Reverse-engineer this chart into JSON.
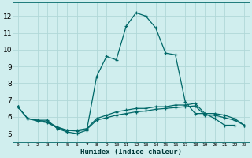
{
  "xlabel": "Humidex (Indice chaleur)",
  "background_color": "#d0eeee",
  "grid_color": "#b0d8d8",
  "line_color": "#006868",
  "xlim": [
    -0.5,
    23.5
  ],
  "ylim": [
    4.5,
    12.8
  ],
  "yticks": [
    5,
    6,
    7,
    8,
    9,
    10,
    11,
    12
  ],
  "xticks": [
    0,
    1,
    2,
    3,
    4,
    5,
    6,
    7,
    8,
    9,
    10,
    11,
    12,
    13,
    14,
    15,
    16,
    17,
    18,
    19,
    20,
    21,
    22,
    23
  ],
  "series0_x": [
    0,
    1,
    2,
    3,
    4,
    5,
    6,
    7,
    8,
    9,
    10,
    11,
    12,
    13,
    14,
    15,
    16,
    17,
    18,
    19,
    20,
    21,
    22
  ],
  "series0_y": [
    6.6,
    5.9,
    5.8,
    5.8,
    5.3,
    5.1,
    5.0,
    5.2,
    8.4,
    9.6,
    9.4,
    11.4,
    12.2,
    12.0,
    11.3,
    9.8,
    9.7,
    6.9,
    6.2,
    6.2,
    5.9,
    5.5,
    5.5
  ],
  "series1_x": [
    0,
    1,
    2,
    3,
    4,
    5,
    6,
    7,
    8,
    9,
    10,
    11,
    12,
    13,
    14,
    15,
    16,
    17,
    18,
    19,
    20,
    21,
    22,
    23
  ],
  "series1_y": [
    6.6,
    5.9,
    5.8,
    5.7,
    5.4,
    5.2,
    5.2,
    5.3,
    5.9,
    6.1,
    6.3,
    6.4,
    6.5,
    6.5,
    6.6,
    6.6,
    6.7,
    6.7,
    6.8,
    6.2,
    6.2,
    6.1,
    5.9,
    5.5
  ],
  "series2_x": [
    0,
    1,
    2,
    3,
    4,
    5,
    6,
    7,
    8,
    9,
    10,
    11,
    12,
    13,
    14,
    15,
    16,
    17,
    18,
    19,
    20,
    21,
    22,
    23
  ],
  "series2_y": [
    6.6,
    5.9,
    5.75,
    5.65,
    5.35,
    5.2,
    5.15,
    5.25,
    5.8,
    5.95,
    6.1,
    6.2,
    6.3,
    6.35,
    6.45,
    6.5,
    6.55,
    6.6,
    6.65,
    6.1,
    6.1,
    5.95,
    5.8,
    5.5
  ]
}
